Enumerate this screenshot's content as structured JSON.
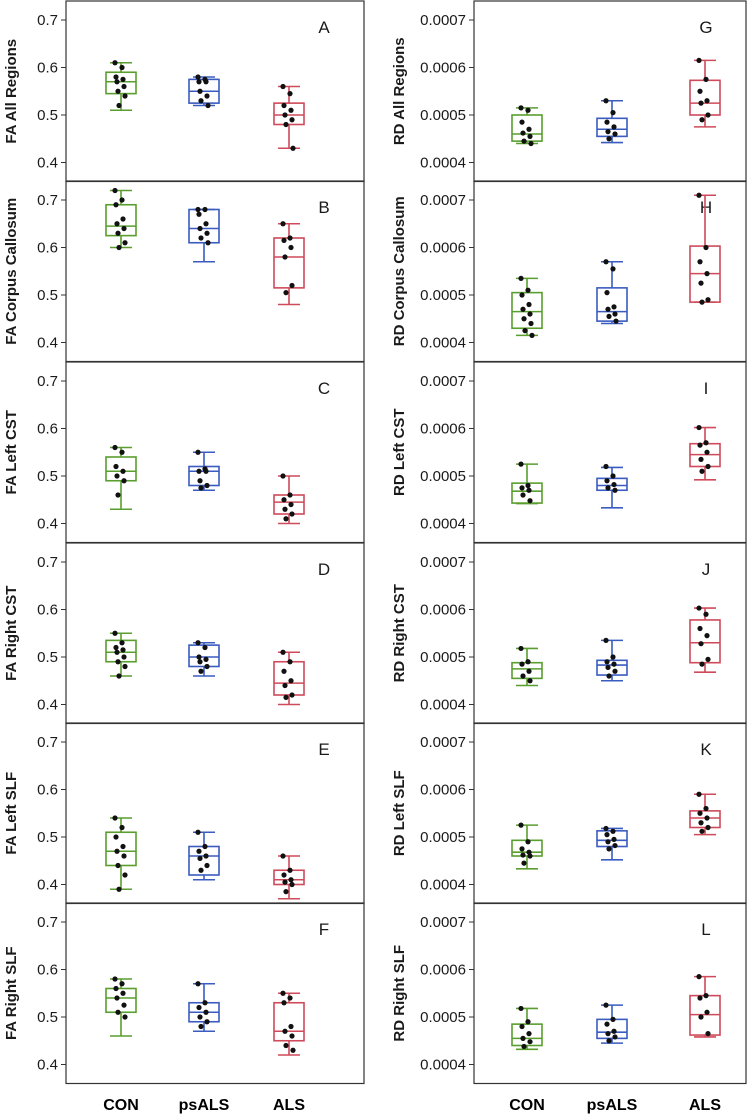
{
  "colors": {
    "CON": "#5a9e2f",
    "psALS": "#3a5bbf",
    "ALS": "#cf4a5a",
    "point": "#111111",
    "frame": "#333333"
  },
  "groups": [
    "CON",
    "psALS",
    "ALS"
  ],
  "chart_data": [
    {
      "type": "box",
      "panel": "A",
      "column": "left",
      "ylabel": "FA All Regions",
      "ylim": [
        0.36,
        0.74
      ],
      "ticks": [
        "0.4",
        "0.5",
        "0.6",
        "0.7"
      ],
      "boxes": [
        {
          "group": "CON",
          "min": 0.51,
          "q1": 0.545,
          "median": 0.57,
          "q3": 0.59,
          "max": 0.61,
          "points": [
            0.61,
            0.6,
            0.58,
            0.575,
            0.57,
            0.56,
            0.55,
            0.54,
            0.52
          ]
        },
        {
          "group": "psALS",
          "min": 0.52,
          "q1": 0.525,
          "median": 0.55,
          "q3": 0.575,
          "max": 0.58,
          "points": [
            0.58,
            0.575,
            0.57,
            0.57,
            0.55,
            0.54,
            0.53,
            0.52
          ]
        },
        {
          "group": "ALS",
          "min": 0.43,
          "q1": 0.48,
          "median": 0.5,
          "q3": 0.525,
          "max": 0.56,
          "points": [
            0.56,
            0.545,
            0.52,
            0.51,
            0.5,
            0.49,
            0.48,
            0.43
          ]
        }
      ]
    },
    {
      "type": "box",
      "panel": "G",
      "column": "right",
      "ylabel": "RD All Regions",
      "ylim": [
        0.00036,
        0.00074
      ],
      "ticks": [
        "0.0004",
        "0.0005",
        "0.0006",
        "0.0007"
      ],
      "boxes": [
        {
          "group": "CON",
          "min": 0.00044,
          "q1": 0.000445,
          "median": 0.00046,
          "q3": 0.0005,
          "max": 0.000515,
          "points": [
            0.000515,
            0.00051,
            0.000485,
            0.00047,
            0.000462,
            0.000455,
            0.000445,
            0.00044
          ]
        },
        {
          "group": "psALS",
          "min": 0.000442,
          "q1": 0.000455,
          "median": 0.00047,
          "q3": 0.000493,
          "max": 0.00053,
          "points": [
            0.00053,
            0.000505,
            0.000485,
            0.000475,
            0.000465,
            0.00046,
            0.00045
          ]
        },
        {
          "group": "ALS",
          "min": 0.000475,
          "q1": 0.0005,
          "median": 0.000525,
          "q3": 0.000573,
          "max": 0.000615,
          "points": [
            0.000615,
            0.000575,
            0.00055,
            0.00053,
            0.000525,
            0.0005,
            0.00049
          ]
        }
      ]
    },
    {
      "type": "box",
      "panel": "B",
      "column": "left",
      "ylabel": "FA Corpus Callosum",
      "ylim": [
        0.36,
        0.74
      ],
      "ticks": [
        "0.4",
        "0.5",
        "0.6",
        "0.7"
      ],
      "boxes": [
        {
          "group": "CON",
          "min": 0.6,
          "q1": 0.625,
          "median": 0.645,
          "q3": 0.69,
          "max": 0.72,
          "points": [
            0.72,
            0.7,
            0.69,
            0.66,
            0.65,
            0.64,
            0.63,
            0.61,
            0.6
          ]
        },
        {
          "group": "psALS",
          "min": 0.57,
          "q1": 0.61,
          "median": 0.64,
          "q3": 0.68,
          "max": 0.68,
          "points": [
            0.68,
            0.68,
            0.67,
            0.65,
            0.64,
            0.63,
            0.62,
            0.61
          ]
        },
        {
          "group": "ALS",
          "min": 0.48,
          "q1": 0.515,
          "median": 0.58,
          "q3": 0.62,
          "max": 0.65,
          "points": [
            0.65,
            0.62,
            0.615,
            0.6,
            0.58,
            0.52,
            0.505
          ]
        }
      ]
    },
    {
      "type": "box",
      "panel": "H",
      "column": "right",
      "ylabel": "RD Corpus  Callosum",
      "ylim": [
        0.00036,
        0.00074
      ],
      "ticks": [
        "0.0004",
        "0.0005",
        "0.0006",
        "0.0007"
      ],
      "boxes": [
        {
          "group": "CON",
          "min": 0.000415,
          "q1": 0.00043,
          "median": 0.000465,
          "q3": 0.000505,
          "max": 0.000535,
          "points": [
            0.000535,
            0.00051,
            0.0005,
            0.00048,
            0.00047,
            0.00046,
            0.00045,
            0.00044,
            0.000425,
            0.000415
          ]
        },
        {
          "group": "psALS",
          "min": 0.00044,
          "q1": 0.000445,
          "median": 0.000465,
          "q3": 0.000515,
          "max": 0.00057,
          "points": [
            0.00057,
            0.000555,
            0.000505,
            0.000475,
            0.00047,
            0.00046,
            0.000455,
            0.000445
          ]
        },
        {
          "group": "ALS",
          "min": 0.000485,
          "q1": 0.000485,
          "median": 0.000545,
          "q3": 0.000603,
          "max": 0.00071,
          "points": [
            0.00071,
            0.0006,
            0.00057,
            0.000545,
            0.000525,
            0.00049,
            0.000485
          ]
        }
      ]
    },
    {
      "type": "box",
      "panel": "C",
      "column": "left",
      "ylabel": "FA Left CST",
      "ylim": [
        0.36,
        0.74
      ],
      "ticks": [
        "0.4",
        "0.5",
        "0.6",
        "0.7"
      ],
      "boxes": [
        {
          "group": "CON",
          "min": 0.43,
          "q1": 0.49,
          "median": 0.51,
          "q3": 0.54,
          "max": 0.56,
          "points": [
            0.56,
            0.55,
            0.52,
            0.51,
            0.5,
            0.49,
            0.46
          ]
        },
        {
          "group": "psALS",
          "min": 0.47,
          "q1": 0.48,
          "median": 0.51,
          "q3": 0.52,
          "max": 0.55,
          "points": [
            0.55,
            0.515,
            0.51,
            0.51,
            0.49,
            0.48,
            0.475
          ]
        },
        {
          "group": "ALS",
          "min": 0.4,
          "q1": 0.42,
          "median": 0.445,
          "q3": 0.46,
          "max": 0.5,
          "points": [
            0.5,
            0.46,
            0.45,
            0.44,
            0.43,
            0.42,
            0.41
          ]
        }
      ]
    },
    {
      "type": "box",
      "panel": "I",
      "column": "right",
      "ylabel": "RD Left CST",
      "ylim": [
        0.00036,
        0.00074
      ],
      "ticks": [
        "0.0004",
        "0.0005",
        "0.0006",
        "0.0007"
      ],
      "boxes": [
        {
          "group": "CON",
          "min": 0.000442,
          "q1": 0.000443,
          "median": 0.000468,
          "q3": 0.000485,
          "max": 0.000525,
          "points": [
            0.000525,
            0.00048,
            0.000475,
            0.00047,
            0.00046,
            0.000448
          ]
        },
        {
          "group": "psALS",
          "min": 0.000433,
          "q1": 0.00047,
          "median": 0.00048,
          "q3": 0.000495,
          "max": 0.000518,
          "points": [
            0.00052,
            0.0005,
            0.00049,
            0.000482,
            0.000475,
            0.00047
          ]
        },
        {
          "group": "ALS",
          "min": 0.000492,
          "q1": 0.00052,
          "median": 0.000545,
          "q3": 0.000568,
          "max": 0.000602,
          "points": [
            0.000602,
            0.00057,
            0.000565,
            0.00055,
            0.000535,
            0.00052,
            0.00051
          ]
        }
      ]
    },
    {
      "type": "box",
      "panel": "D",
      "column": "left",
      "ylabel": "FA Right CST",
      "ylim": [
        0.36,
        0.74
      ],
      "ticks": [
        "0.4",
        "0.5",
        "0.6",
        "0.7"
      ],
      "boxes": [
        {
          "group": "CON",
          "min": 0.46,
          "q1": 0.49,
          "median": 0.51,
          "q3": 0.535,
          "max": 0.55,
          "points": [
            0.55,
            0.53,
            0.52,
            0.515,
            0.51,
            0.5,
            0.49,
            0.48,
            0.46
          ]
        },
        {
          "group": "psALS",
          "min": 0.46,
          "q1": 0.48,
          "median": 0.5,
          "q3": 0.525,
          "max": 0.53,
          "points": [
            0.53,
            0.52,
            0.5,
            0.495,
            0.49,
            0.48,
            0.47
          ]
        },
        {
          "group": "ALS",
          "min": 0.4,
          "q1": 0.42,
          "median": 0.445,
          "q3": 0.49,
          "max": 0.51,
          "points": [
            0.51,
            0.49,
            0.47,
            0.45,
            0.44,
            0.42,
            0.415
          ]
        }
      ]
    },
    {
      "type": "box",
      "panel": "J",
      "column": "right",
      "ylabel": "RD Right CST",
      "ylim": [
        0.00036,
        0.00074
      ],
      "ticks": [
        "0.0004",
        "0.0005",
        "0.0006",
        "0.0007"
      ],
      "boxes": [
        {
          "group": "CON",
          "min": 0.00044,
          "q1": 0.000455,
          "median": 0.000475,
          "q3": 0.000488,
          "max": 0.000518,
          "points": [
            0.000518,
            0.00049,
            0.000485,
            0.00047,
            0.00046,
            0.00045
          ]
        },
        {
          "group": "psALS",
          "min": 0.00045,
          "q1": 0.000462,
          "median": 0.000483,
          "q3": 0.000493,
          "max": 0.000535,
          "points": [
            0.000535,
            0.0005,
            0.00049,
            0.000485,
            0.000478,
            0.00047,
            0.00046
          ]
        },
        {
          "group": "ALS",
          "min": 0.000468,
          "q1": 0.000488,
          "median": 0.00053,
          "q3": 0.000578,
          "max": 0.000603,
          "points": [
            0.000603,
            0.00059,
            0.00056,
            0.000545,
            0.000528,
            0.000495,
            0.000485
          ]
        }
      ]
    },
    {
      "type": "box",
      "panel": "E",
      "column": "left",
      "ylabel": "FA Left SLF",
      "ylim": [
        0.36,
        0.74
      ],
      "ticks": [
        "0.4",
        "0.5",
        "0.6",
        "0.7"
      ],
      "boxes": [
        {
          "group": "CON",
          "min": 0.39,
          "q1": 0.44,
          "median": 0.47,
          "q3": 0.51,
          "max": 0.54,
          "points": [
            0.54,
            0.52,
            0.5,
            0.48,
            0.47,
            0.46,
            0.44,
            0.42,
            0.39
          ]
        },
        {
          "group": "psALS",
          "min": 0.41,
          "q1": 0.42,
          "median": 0.46,
          "q3": 0.48,
          "max": 0.51,
          "points": [
            0.51,
            0.48,
            0.47,
            0.46,
            0.455,
            0.44,
            0.43
          ]
        },
        {
          "group": "ALS",
          "min": 0.37,
          "q1": 0.4,
          "median": 0.41,
          "q3": 0.43,
          "max": 0.46,
          "points": [
            0.46,
            0.43,
            0.42,
            0.41,
            0.405,
            0.4,
            0.385
          ]
        }
      ]
    },
    {
      "type": "box",
      "panel": "K",
      "column": "right",
      "ylabel": "RD Left SLF",
      "ylim": [
        0.00036,
        0.00074
      ],
      "ticks": [
        "0.0004",
        "0.0005",
        "0.0006",
        "0.0007"
      ],
      "boxes": [
        {
          "group": "CON",
          "min": 0.000433,
          "q1": 0.00046,
          "median": 0.000468,
          "q3": 0.000493,
          "max": 0.000525,
          "points": [
            0.000525,
            0.00049,
            0.000475,
            0.000468,
            0.000462,
            0.00046,
            0.000445
          ]
        },
        {
          "group": "psALS",
          "min": 0.000452,
          "q1": 0.00048,
          "median": 0.000493,
          "q3": 0.000513,
          "max": 0.000518,
          "points": [
            0.000518,
            0.000512,
            0.000505,
            0.000495,
            0.00049,
            0.000482,
            0.000475
          ]
        },
        {
          "group": "ALS",
          "min": 0.000505,
          "q1": 0.00052,
          "median": 0.00054,
          "q3": 0.000555,
          "max": 0.00059,
          "points": [
            0.00059,
            0.00056,
            0.00055,
            0.00054,
            0.00053,
            0.00052,
            0.000512
          ]
        }
      ]
    },
    {
      "type": "box",
      "panel": "F",
      "column": "left",
      "ylabel": "FA Right SLF",
      "ylim": [
        0.36,
        0.74
      ],
      "ticks": [
        "0.4",
        "0.5",
        "0.6",
        "0.7"
      ],
      "boxes": [
        {
          "group": "CON",
          "min": 0.46,
          "q1": 0.51,
          "median": 0.54,
          "q3": 0.56,
          "max": 0.58,
          "points": [
            0.58,
            0.57,
            0.56,
            0.55,
            0.54,
            0.525,
            0.51,
            0.5
          ]
        },
        {
          "group": "psALS",
          "min": 0.47,
          "q1": 0.49,
          "median": 0.51,
          "q3": 0.53,
          "max": 0.57,
          "points": [
            0.57,
            0.53,
            0.52,
            0.51,
            0.5,
            0.49,
            0.48
          ]
        },
        {
          "group": "ALS",
          "min": 0.42,
          "q1": 0.45,
          "median": 0.47,
          "q3": 0.53,
          "max": 0.55,
          "points": [
            0.55,
            0.54,
            0.53,
            0.48,
            0.47,
            0.46,
            0.44,
            0.43
          ]
        }
      ]
    },
    {
      "type": "box",
      "panel": "L",
      "column": "right",
      "ylabel": "RD Right SLF",
      "ylim": [
        0.00036,
        0.00074
      ],
      "ticks": [
        "0.0004",
        "0.0005",
        "0.0006",
        "0.0007"
      ],
      "boxes": [
        {
          "group": "CON",
          "min": 0.000432,
          "q1": 0.00044,
          "median": 0.000455,
          "q3": 0.000485,
          "max": 0.000518,
          "points": [
            0.000518,
            0.00049,
            0.00048,
            0.000465,
            0.000455,
            0.000448,
            0.000438
          ]
        },
        {
          "group": "psALS",
          "min": 0.000445,
          "q1": 0.000455,
          "median": 0.000468,
          "q3": 0.000495,
          "max": 0.000525,
          "points": [
            0.000525,
            0.000495,
            0.000485,
            0.00047,
            0.000465,
            0.000458,
            0.00045
          ]
        },
        {
          "group": "ALS",
          "min": 0.000458,
          "q1": 0.000462,
          "median": 0.000505,
          "q3": 0.000545,
          "max": 0.000585,
          "points": [
            0.000585,
            0.000545,
            0.00054,
            0.00051,
            0.0005,
            0.000465
          ]
        }
      ]
    }
  ]
}
